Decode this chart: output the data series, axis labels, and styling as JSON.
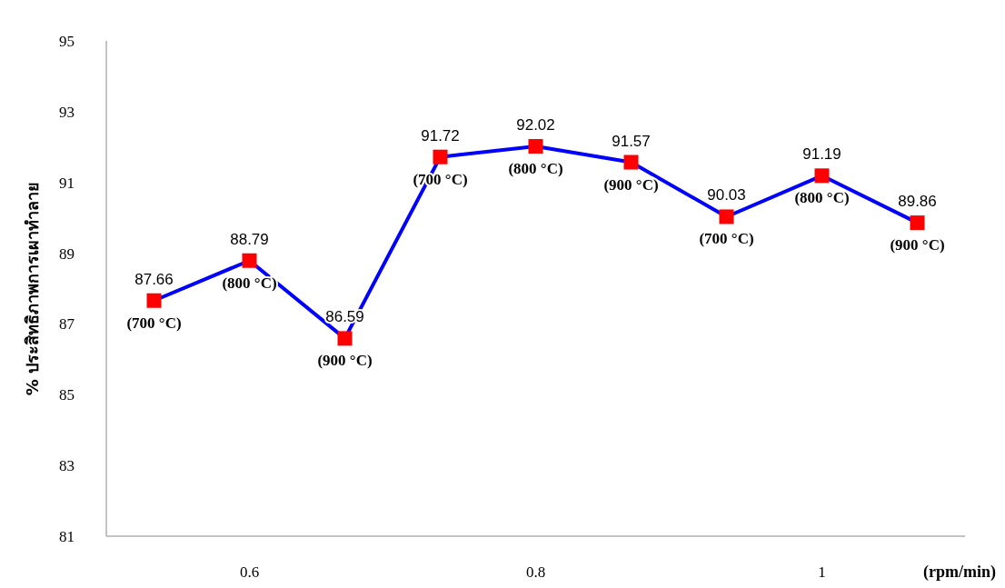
{
  "chart_data": {
    "type": "line",
    "ylabel": "% ประสิทธิภาพการเผาทำลาย",
    "xlabel": "(rpm/min)",
    "categories": [
      null,
      "0.6",
      null,
      null,
      "0.8",
      null,
      null,
      "1",
      null
    ],
    "series": [
      {
        "color": "#0000ff",
        "colors": [
          "#ff0000",
          "#ff0000",
          "#ff0000",
          "#ff0000",
          "#ff0000",
          "#ff0000",
          "#ff0000",
          "#ff0000",
          "#ff0000"
        ],
        "values": [
          87.66,
          88.79,
          86.59,
          91.72,
          92.02,
          91.57,
          90.03,
          91.19,
          89.86
        ]
      }
    ],
    "marker": "square",
    "data_labels": true,
    "ylim": [
      81,
      95
    ],
    "yticks": [
      81,
      83,
      85,
      87,
      89,
      91,
      93,
      95
    ],
    "annotations": [
      "(700 °C)",
      "(800 °C)",
      "(900 °C)",
      "(700 °C)",
      "(800 °C)",
      "(900 °C)",
      "(700 °C)",
      "(800 °C)",
      "(900 °C)"
    ]
  }
}
